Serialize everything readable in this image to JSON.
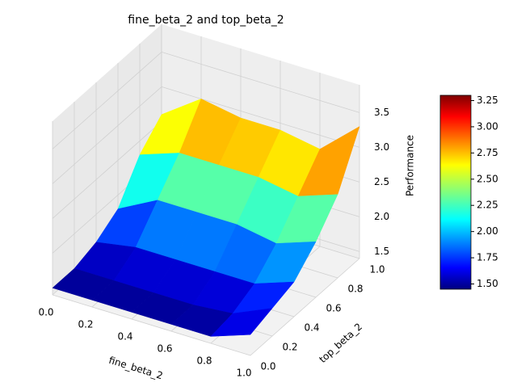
{
  "chart_data": {
    "type": "surface",
    "title": "fine_beta_2 and top_beta_2",
    "x_label": "fine_beta_2",
    "y_label": "top_beta_2",
    "z_label": "Performance",
    "x": [
      0,
      0.2,
      0.4,
      0.6,
      0.8,
      1.0
    ],
    "y": [
      0,
      0.2,
      0.4,
      0.6,
      0.8,
      1.0
    ],
    "z": [
      [
        1.5,
        1.5,
        1.5,
        1.5,
        1.5,
        1.7
      ],
      [
        1.5,
        1.5,
        1.5,
        1.5,
        1.55,
        1.8
      ],
      [
        1.6,
        1.7,
        1.7,
        1.7,
        1.7,
        1.9
      ],
      [
        1.8,
        2.1,
        2.1,
        2.1,
        2.0,
        2.2
      ],
      [
        2.3,
        2.5,
        2.5,
        2.5,
        2.4,
        2.6
      ],
      [
        2.6,
        3.0,
        2.9,
        2.9,
        2.8,
        3.3
      ]
    ],
    "colormap": "jet",
    "xlim": [
      0,
      1
    ],
    "ylim": [
      0,
      1
    ],
    "zlim": [
      1.4,
      3.9
    ],
    "xticks": [
      {
        "value": 0,
        "label": "0.0"
      },
      0.2,
      0.4,
      0.6,
      0.8,
      {
        "value": 1,
        "label": "1.0"
      }
    ],
    "yticks": [
      {
        "value": 0,
        "label": "0.0"
      },
      0.2,
      0.4,
      0.6,
      0.8,
      {
        "value": 1,
        "label": "1.0"
      }
    ],
    "zticks": [
      1.5,
      {
        "value": 2,
        "label": "2.0"
      },
      2.5,
      {
        "value": 3,
        "label": "3.0"
      },
      3.5
    ],
    "colorbar_lim": [
      1.45,
      3.3
    ],
    "colorbar_ticks": [
      {
        "value": 1.5,
        "label": "1.50"
      },
      1.75,
      {
        "value": 2,
        "label": "2.00"
      },
      2.25,
      {
        "value": 2.5,
        "label": "2.50"
      },
      2.75,
      {
        "value": 3,
        "label": "3.00"
      },
      3.25
    ],
    "grid": true
  }
}
